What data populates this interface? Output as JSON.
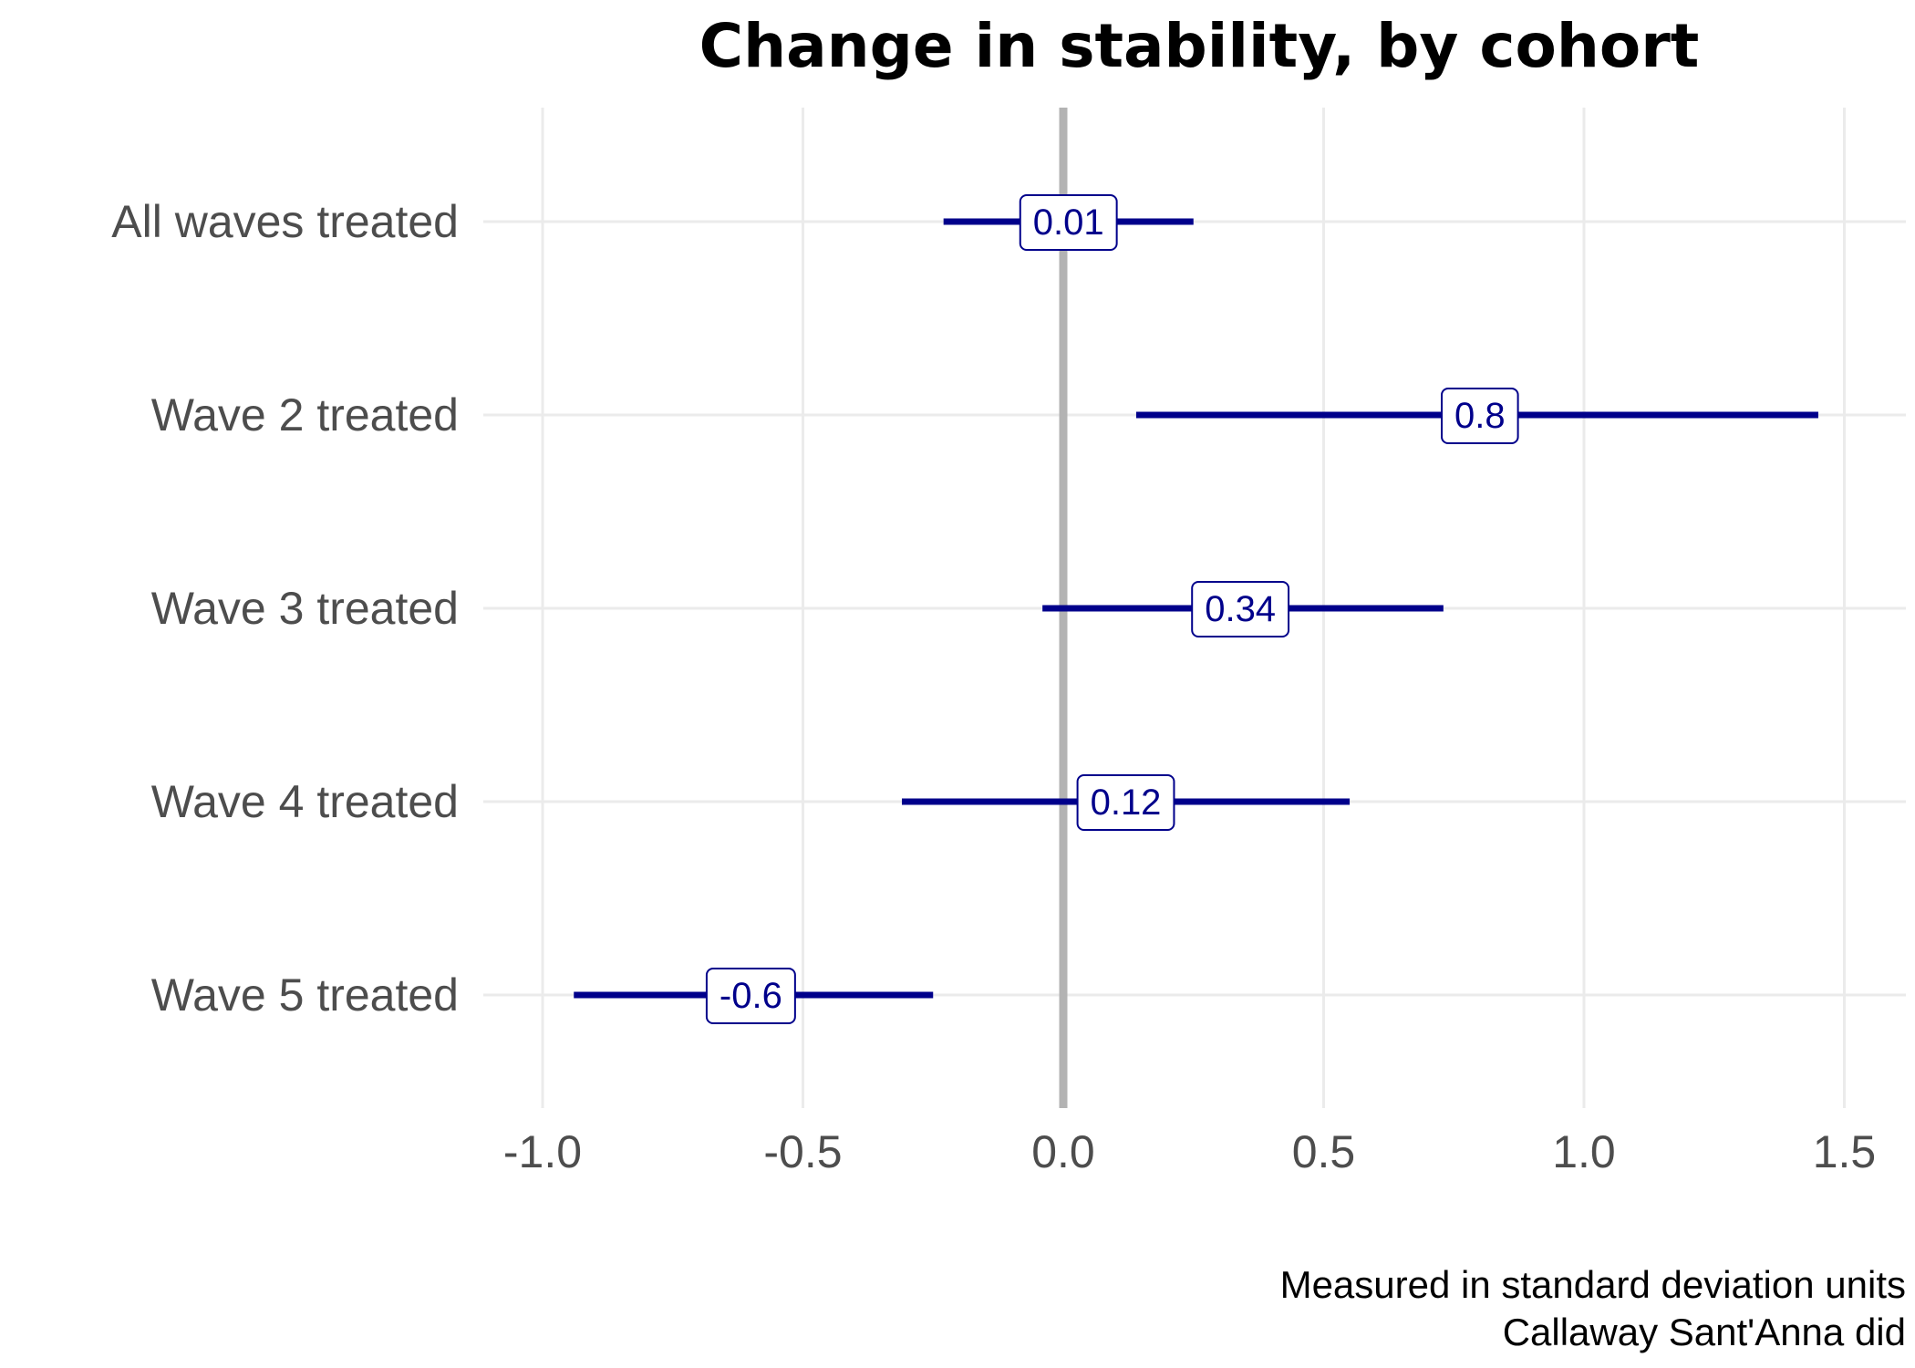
{
  "chart_data": {
    "type": "forest",
    "title": "Change in stability, by cohort",
    "xlabel": "",
    "ylabel": "",
    "caption": [
      "Measured in standard deviation units",
      "Callaway Sant'Anna did"
    ],
    "xlim": [
      -1.05,
      1.6
    ],
    "x_ticks": [
      -1.0,
      -0.5,
      0.0,
      0.5,
      1.0,
      1.5
    ],
    "x_tick_labels": [
      "-1.0",
      "-0.5",
      "0.0",
      "0.5",
      "1.0",
      "1.5"
    ],
    "reference_line_x": 0.0,
    "grid": true,
    "legend": "none",
    "categories": [
      "All waves treated",
      "Wave 2 treated",
      "Wave 3 treated",
      "Wave 4 treated",
      "Wave 5 treated"
    ],
    "estimates": [
      0.01,
      0.8,
      0.34,
      0.12,
      -0.6
    ],
    "labels": [
      "0.01",
      "0.8",
      "0.34",
      "0.12",
      "-0.6"
    ],
    "ci_low": [
      -0.23,
      0.14,
      -0.04,
      -0.31,
      -0.94
    ],
    "ci_high": [
      0.25,
      1.45,
      0.73,
      0.55,
      -0.25
    ],
    "colors": {
      "interval": "#00008B",
      "reference_line": "#b3b3b3",
      "grid": "#ebebeb",
      "label_border": "#00008B",
      "label_text": "#00008B"
    }
  }
}
